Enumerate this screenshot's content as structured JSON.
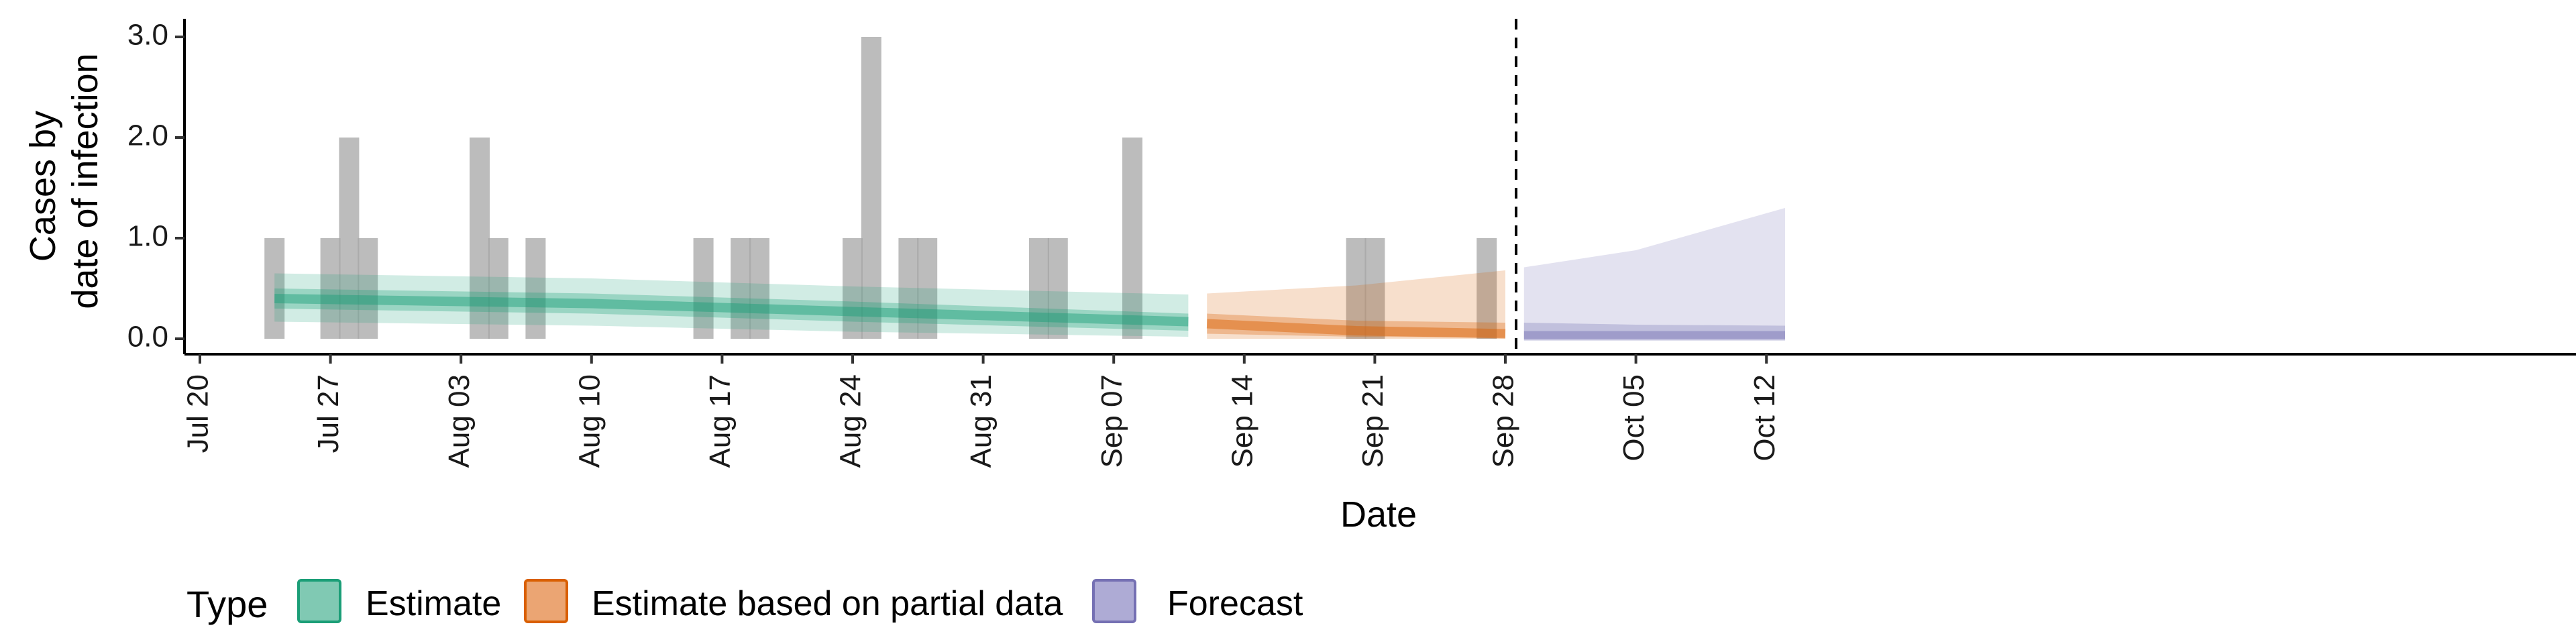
{
  "chart_data": {
    "type": "bar",
    "xlabel": "Date",
    "ylabel_lines": [
      "Cases by",
      "date of infection"
    ],
    "x_range": [
      "2020-07-20",
      "2020-10-17"
    ],
    "ylim": [
      -0.15,
      3.15
    ],
    "x_ticks": [
      {
        "date": "2020-07-20",
        "label": "Jul 20"
      },
      {
        "date": "2020-07-27",
        "label": "Jul 27"
      },
      {
        "date": "2020-08-03",
        "label": "Aug 03"
      },
      {
        "date": "2020-08-10",
        "label": "Aug 10"
      },
      {
        "date": "2020-08-17",
        "label": "Aug 17"
      },
      {
        "date": "2020-08-24",
        "label": "Aug 24"
      },
      {
        "date": "2020-08-31",
        "label": "Aug 31"
      },
      {
        "date": "2020-09-07",
        "label": "Sep 07"
      },
      {
        "date": "2020-09-14",
        "label": "Sep 14"
      },
      {
        "date": "2020-09-21",
        "label": "Sep 21"
      },
      {
        "date": "2020-09-28",
        "label": "Sep 28"
      },
      {
        "date": "2020-10-05",
        "label": "Oct 05"
      },
      {
        "date": "2020-10-12",
        "label": "Oct 12"
      }
    ],
    "y_ticks": [
      {
        "value": 0,
        "label": "0.0"
      },
      {
        "value": 1,
        "label": "1.0"
      },
      {
        "value": 2,
        "label": "2.0"
      },
      {
        "value": 3,
        "label": "3.0"
      }
    ],
    "observed_cases": [
      {
        "date": "2020-07-24",
        "value": 1
      },
      {
        "date": "2020-07-27",
        "value": 1
      },
      {
        "date": "2020-07-28",
        "value": 2
      },
      {
        "date": "2020-07-29",
        "value": 1
      },
      {
        "date": "2020-08-04",
        "value": 2
      },
      {
        "date": "2020-08-05",
        "value": 1
      },
      {
        "date": "2020-08-07",
        "value": 1
      },
      {
        "date": "2020-08-16",
        "value": 1
      },
      {
        "date": "2020-08-18",
        "value": 1
      },
      {
        "date": "2020-08-19",
        "value": 1
      },
      {
        "date": "2020-08-24",
        "value": 1
      },
      {
        "date": "2020-08-25",
        "value": 3
      },
      {
        "date": "2020-08-27",
        "value": 1
      },
      {
        "date": "2020-08-28",
        "value": 1
      },
      {
        "date": "2020-09-03",
        "value": 1
      },
      {
        "date": "2020-09-04",
        "value": 1
      },
      {
        "date": "2020-09-08",
        "value": 2
      },
      {
        "date": "2020-09-20",
        "value": 1
      },
      {
        "date": "2020-09-21",
        "value": 1
      },
      {
        "date": "2020-09-27",
        "value": 1
      }
    ],
    "bar_color": "#a6a6a6",
    "vline_date": "2020-09-28",
    "series": [
      {
        "name": "Estimate",
        "color": "#1b9e77",
        "x": [
          "2020-07-24",
          "2020-08-10",
          "2020-08-24",
          "2020-09-11"
        ],
        "median": [
          0.4,
          0.35,
          0.27,
          0.17
        ],
        "inner_low": [
          0.3,
          0.25,
          0.17,
          0.08
        ],
        "inner_high": [
          0.5,
          0.45,
          0.37,
          0.25
        ],
        "outer_low": [
          0.17,
          0.13,
          0.07,
          0.02
        ],
        "outer_high": [
          0.65,
          0.6,
          0.52,
          0.44
        ]
      },
      {
        "name": "Estimate based on partial data",
        "color": "#d95f02",
        "x": [
          "2020-09-12",
          "2020-09-20",
          "2020-09-28"
        ],
        "median": [
          0.15,
          0.08,
          0.05
        ],
        "inner_low": [
          0.05,
          0.02,
          0.01
        ],
        "inner_high": [
          0.25,
          0.18,
          0.16
        ],
        "outer_low": [
          0.0,
          0.0,
          0.0
        ],
        "outer_high": [
          0.45,
          0.53,
          0.68
        ]
      },
      {
        "name": "Forecast",
        "color": "#7570b3",
        "x": [
          "2020-09-29",
          "2020-10-05",
          "2020-10-13"
        ],
        "median": [
          0.03,
          0.03,
          0.03
        ],
        "inner_low": [
          0.0,
          0.0,
          0.0
        ],
        "inner_high": [
          0.16,
          0.14,
          0.13
        ],
        "outer_low": [
          0.0,
          0.0,
          0.0
        ],
        "outer_high": [
          0.71,
          0.88,
          1.3
        ]
      }
    ],
    "legend": {
      "title": "Type",
      "position": "bottom",
      "entries": [
        {
          "label": "Estimate",
          "fill": "#80c9b3",
          "stroke": "#1b9e77"
        },
        {
          "label": "Estimate based on partial data",
          "fill": "#eba573",
          "stroke": "#d95f02"
        },
        {
          "label": "Forecast",
          "fill": "#aeabd5",
          "stroke": "#7570b3"
        }
      ]
    }
  }
}
